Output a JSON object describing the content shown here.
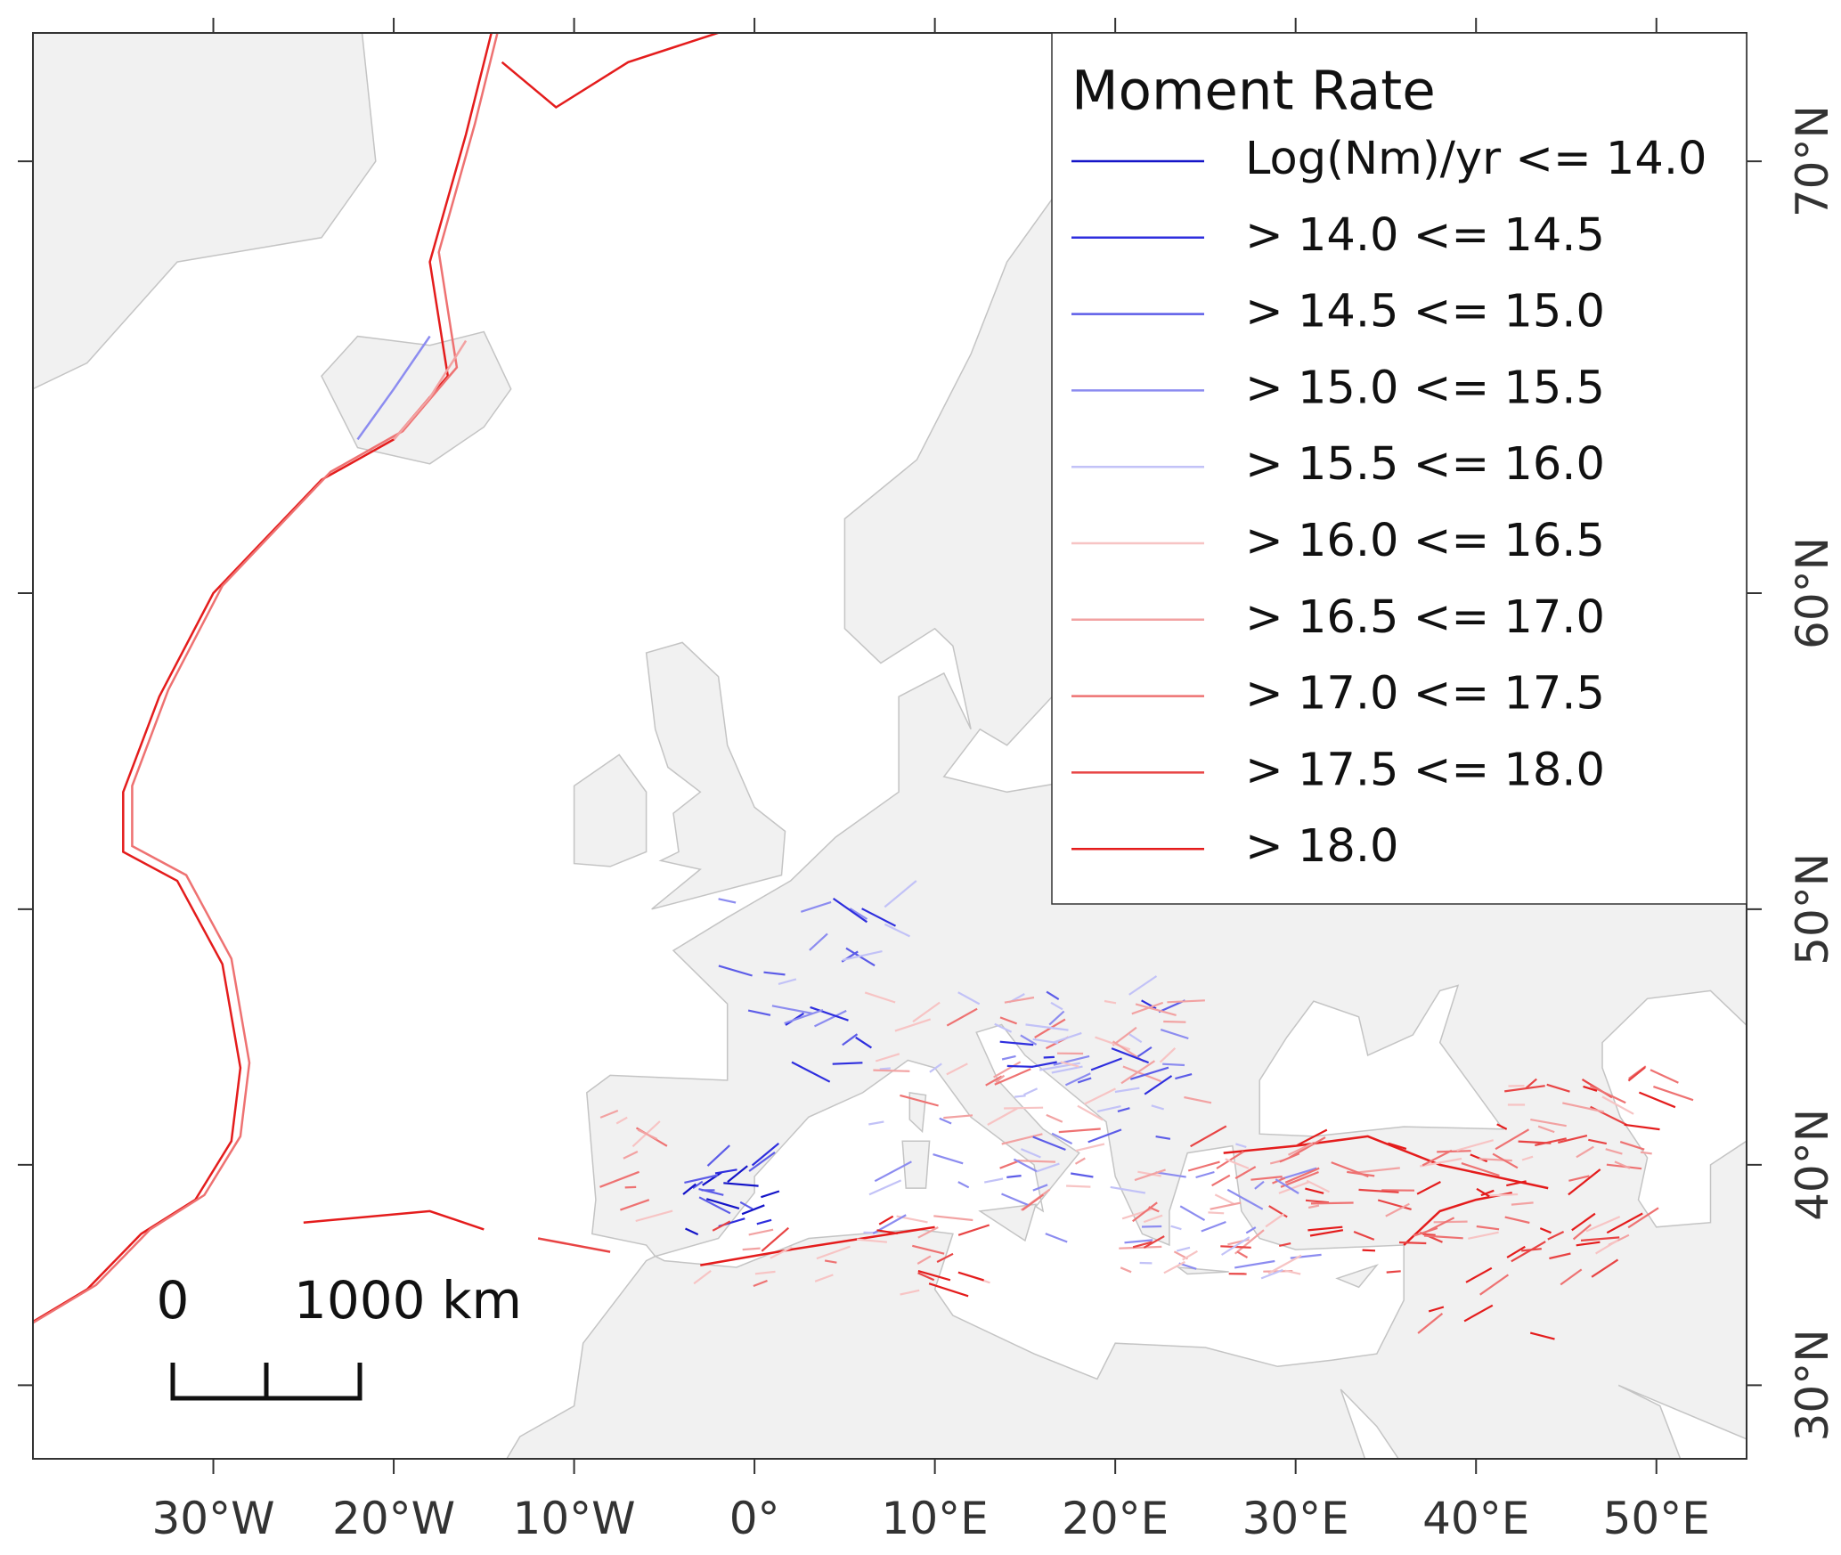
{
  "map": {
    "xlim": [
      -40,
      55
    ],
    "ylim": [
      26.4,
      72.3
    ],
    "x_ticks": [
      {
        "value": -30,
        "label": "30°W"
      },
      {
        "value": -20,
        "label": "20°W"
      },
      {
        "value": -10,
        "label": "10°W"
      },
      {
        "value": 0,
        "label": "0°"
      },
      {
        "value": 10,
        "label": "10°E"
      },
      {
        "value": 20,
        "label": "20°E"
      },
      {
        "value": 30,
        "label": "30°E"
      },
      {
        "value": 40,
        "label": "40°E"
      },
      {
        "value": 50,
        "label": "50°E"
      }
    ],
    "y_ticks": [
      {
        "value": 30,
        "label": "30°N"
      },
      {
        "value": 40,
        "label": "40°N"
      },
      {
        "value": 50,
        "label": "50°N"
      },
      {
        "value": 60,
        "label": "60°N"
      },
      {
        "value": 70,
        "label": "70°N"
      }
    ],
    "legend": {
      "title": "Moment Rate",
      "items": [
        {
          "label": "Log(Nm)/yr <= 14.0",
          "color": "#1414c8"
        },
        {
          "label": "> 14.0 <= 14.5",
          "color": "#2e2ede"
        },
        {
          "label": "> 14.5 <= 15.0",
          "color": "#5c5ce8"
        },
        {
          "label": "> 15.0 <= 15.5",
          "color": "#8c8cf0"
        },
        {
          "label": "> 15.5 <= 16.0",
          "color": "#c2c2f7"
        },
        {
          "label": "> 16.0 <= 16.5",
          "color": "#f7c4c4"
        },
        {
          "label": "> 16.5 <= 17.0",
          "color": "#f2a2a2"
        },
        {
          "label": "> 17.0 <= 17.5",
          "color": "#ee7272"
        },
        {
          "label": "> 17.5 <= 18.0",
          "color": "#e84444"
        },
        {
          "label": "> 18.0",
          "color": "#e41c1c"
        }
      ]
    },
    "scale_bar": {
      "labels": [
        "0",
        "1000 km"
      ]
    }
  }
}
